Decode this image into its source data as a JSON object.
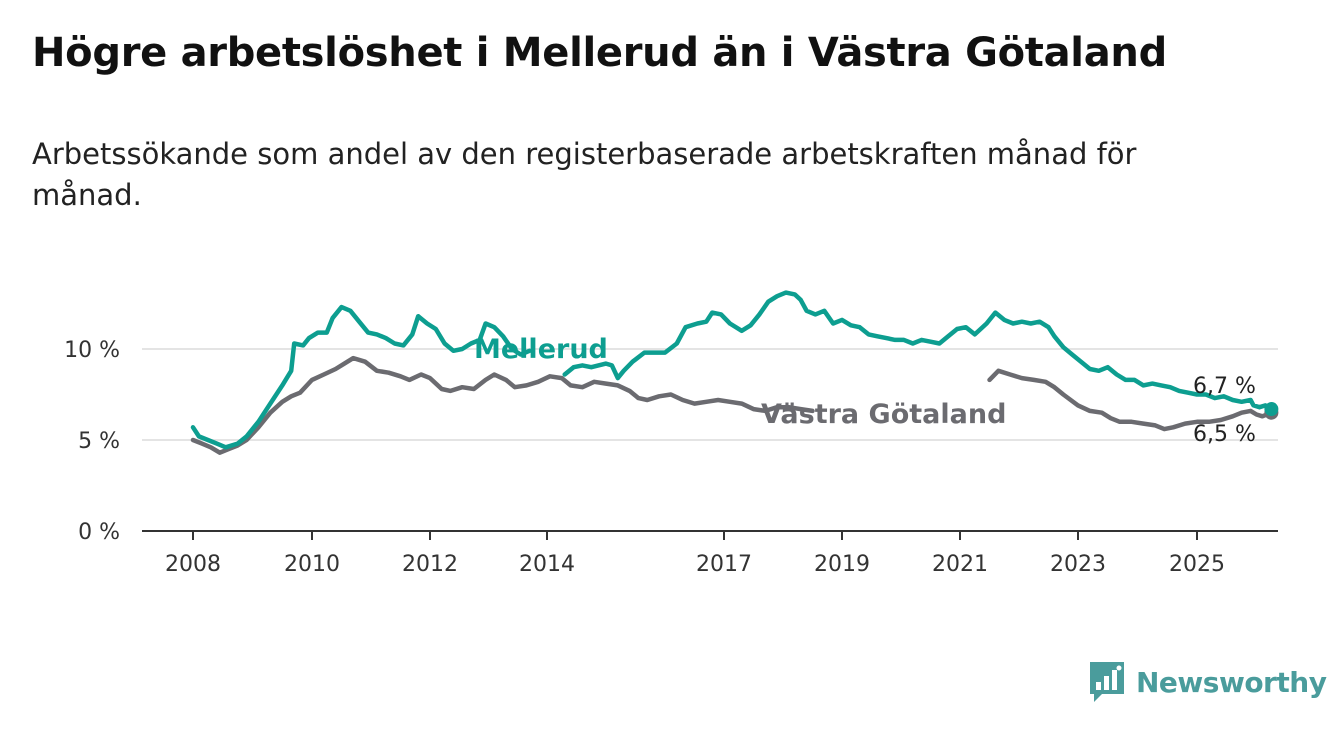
{
  "title": "Högre arbetslöshet i Mellerud än i Västra Götaland",
  "subtitle": "Arbetssökande som andel av den registerbaserade arbetskraften månad för månad.",
  "brand": {
    "name": "Newsworthy",
    "color": "#4a9c9c",
    "icon": "bar-chart-logo-icon"
  },
  "chart_data": {
    "type": "line",
    "y_ticks": [
      0,
      5,
      10
    ],
    "y_tick_format": "{v} %",
    "x_ticks": [
      "2008",
      "2010",
      "2012",
      "2014",
      "2017",
      "2019",
      "2021",
      "2023",
      "2025"
    ],
    "xlim": [
      2008.0,
      2026.3
    ],
    "ylim": [
      0,
      10.5
    ],
    "grid": true,
    "series": [
      {
        "name": "Mellerud",
        "color": "#0d9e90",
        "end_label": "6,7 %",
        "points": [
          [
            2008.0,
            5.7
          ],
          [
            2008.1,
            5.2
          ],
          [
            2008.25,
            5.0
          ],
          [
            2008.4,
            4.8
          ],
          [
            2008.55,
            4.6
          ],
          [
            2008.75,
            4.8
          ],
          [
            2008.9,
            5.2
          ],
          [
            2009.1,
            6.0
          ],
          [
            2009.3,
            7.0
          ],
          [
            2009.5,
            8.0
          ],
          [
            2009.65,
            8.8
          ],
          [
            2009.7,
            10.3
          ],
          [
            2009.85,
            10.2
          ],
          [
            2009.95,
            10.6
          ],
          [
            2010.1,
            10.9
          ],
          [
            2010.25,
            10.9
          ],
          [
            2010.35,
            11.7
          ],
          [
            2010.5,
            12.3
          ],
          [
            2010.65,
            12.1
          ],
          [
            2010.8,
            11.5
          ],
          [
            2010.95,
            10.9
          ],
          [
            2011.1,
            10.8
          ],
          [
            2011.25,
            10.6
          ],
          [
            2011.4,
            10.3
          ],
          [
            2011.55,
            10.2
          ],
          [
            2011.7,
            10.8
          ],
          [
            2011.8,
            11.8
          ],
          [
            2011.95,
            11.4
          ],
          [
            2012.1,
            11.1
          ],
          [
            2012.25,
            10.3
          ],
          [
            2012.4,
            9.9
          ],
          [
            2012.55,
            10.0
          ],
          [
            2012.7,
            10.3
          ],
          [
            2012.85,
            10.5
          ],
          [
            2012.95,
            11.4
          ],
          [
            2013.1,
            11.2
          ],
          [
            2013.25,
            10.7
          ],
          [
            2013.4,
            10.0
          ],
          [
            2013.55,
            9.7
          ],
          [
            2013.7,
            9.9
          ],
          [
            2014.3,
            8.6
          ],
          [
            2014.45,
            9.0
          ],
          [
            2014.6,
            9.1
          ],
          [
            2014.75,
            9.0
          ],
          [
            2015.0,
            9.2
          ],
          [
            2015.1,
            9.1
          ],
          [
            2015.2,
            8.4
          ],
          [
            2015.3,
            8.8
          ],
          [
            2015.45,
            9.3
          ],
          [
            2015.65,
            9.8
          ],
          [
            2015.85,
            9.8
          ],
          [
            2016.0,
            9.8
          ],
          [
            2016.2,
            10.3
          ],
          [
            2016.35,
            11.2
          ],
          [
            2016.55,
            11.4
          ],
          [
            2016.7,
            11.5
          ],
          [
            2016.8,
            12.0
          ],
          [
            2016.95,
            11.9
          ],
          [
            2017.1,
            11.4
          ],
          [
            2017.3,
            11.0
          ],
          [
            2017.45,
            11.3
          ],
          [
            2017.6,
            11.9
          ],
          [
            2017.75,
            12.6
          ],
          [
            2017.9,
            12.9
          ],
          [
            2018.05,
            13.1
          ],
          [
            2018.2,
            13.0
          ],
          [
            2018.3,
            12.7
          ],
          [
            2018.4,
            12.1
          ],
          [
            2018.55,
            11.9
          ],
          [
            2018.7,
            12.1
          ],
          [
            2018.85,
            11.4
          ],
          [
            2019.0,
            11.6
          ],
          [
            2019.15,
            11.3
          ],
          [
            2019.3,
            11.2
          ],
          [
            2019.45,
            10.8
          ],
          [
            2019.6,
            10.7
          ],
          [
            2019.75,
            10.6
          ],
          [
            2019.9,
            10.5
          ],
          [
            2020.05,
            10.5
          ],
          [
            2020.2,
            10.3
          ],
          [
            2020.35,
            10.5
          ],
          [
            2020.5,
            10.4
          ],
          [
            2020.65,
            10.3
          ],
          [
            2020.8,
            10.7
          ],
          [
            2020.95,
            11.1
          ],
          [
            2021.1,
            11.2
          ],
          [
            2021.25,
            10.8
          ],
          [
            2021.45,
            11.4
          ],
          [
            2021.6,
            12.0
          ],
          [
            2021.75,
            11.6
          ],
          [
            2021.9,
            11.4
          ],
          [
            2022.05,
            11.5
          ],
          [
            2022.2,
            11.4
          ],
          [
            2022.35,
            11.5
          ],
          [
            2022.5,
            11.2
          ],
          [
            2022.6,
            10.7
          ],
          [
            2022.75,
            10.1
          ],
          [
            2022.9,
            9.7
          ],
          [
            2023.05,
            9.3
          ],
          [
            2023.2,
            8.9
          ],
          [
            2023.35,
            8.8
          ],
          [
            2023.5,
            9.0
          ],
          [
            2023.65,
            8.6
          ],
          [
            2023.8,
            8.3
          ],
          [
            2023.95,
            8.3
          ],
          [
            2024.1,
            8.0
          ],
          [
            2024.25,
            8.1
          ],
          [
            2024.4,
            8.0
          ],
          [
            2024.55,
            7.9
          ],
          [
            2024.7,
            7.7
          ],
          [
            2024.85,
            7.6
          ],
          [
            2025.0,
            7.5
          ],
          [
            2025.15,
            7.5
          ],
          [
            2025.3,
            7.3
          ],
          [
            2025.45,
            7.4
          ],
          [
            2025.6,
            7.2
          ],
          [
            2025.75,
            7.1
          ],
          [
            2025.9,
            7.2
          ],
          [
            2025.95,
            6.9
          ],
          [
            2026.05,
            6.8
          ],
          [
            2026.15,
            6.9
          ],
          [
            2026.25,
            6.7
          ]
        ]
      },
      {
        "name": "Västra Götaland",
        "color": "#6b6b70",
        "end_label": "6,5 %",
        "points": [
          [
            2008.0,
            5.0
          ],
          [
            2008.15,
            4.8
          ],
          [
            2008.3,
            4.6
          ],
          [
            2008.45,
            4.3
          ],
          [
            2008.6,
            4.5
          ],
          [
            2008.75,
            4.7
          ],
          [
            2008.9,
            5.0
          ],
          [
            2009.1,
            5.7
          ],
          [
            2009.3,
            6.5
          ],
          [
            2009.5,
            7.1
          ],
          [
            2009.65,
            7.4
          ],
          [
            2009.8,
            7.6
          ],
          [
            2010.0,
            8.3
          ],
          [
            2010.2,
            8.6
          ],
          [
            2010.4,
            8.9
          ],
          [
            2010.55,
            9.2
          ],
          [
            2010.7,
            9.5
          ],
          [
            2010.9,
            9.3
          ],
          [
            2011.1,
            8.8
          ],
          [
            2011.3,
            8.7
          ],
          [
            2011.5,
            8.5
          ],
          [
            2011.65,
            8.3
          ],
          [
            2011.85,
            8.6
          ],
          [
            2012.0,
            8.4
          ],
          [
            2012.2,
            7.8
          ],
          [
            2012.35,
            7.7
          ],
          [
            2012.55,
            7.9
          ],
          [
            2012.75,
            7.8
          ],
          [
            2012.95,
            8.3
          ],
          [
            2013.1,
            8.6
          ],
          [
            2013.3,
            8.3
          ],
          [
            2013.45,
            7.9
          ],
          [
            2013.65,
            8.0
          ],
          [
            2013.85,
            8.2
          ],
          [
            2014.05,
            8.5
          ],
          [
            2014.25,
            8.4
          ],
          [
            2014.4,
            8.0
          ],
          [
            2014.6,
            7.9
          ],
          [
            2014.8,
            8.2
          ],
          [
            2015.0,
            8.1
          ],
          [
            2015.2,
            8.0
          ],
          [
            2015.4,
            7.7
          ],
          [
            2015.55,
            7.3
          ],
          [
            2015.7,
            7.2
          ],
          [
            2015.9,
            7.4
          ],
          [
            2016.1,
            7.5
          ],
          [
            2016.3,
            7.2
          ],
          [
            2016.5,
            7.0
          ],
          [
            2016.7,
            7.1
          ],
          [
            2016.9,
            7.2
          ],
          [
            2017.1,
            7.1
          ],
          [
            2017.3,
            7.0
          ],
          [
            2017.5,
            6.7
          ],
          [
            2017.7,
            6.6
          ],
          [
            2017.9,
            6.8
          ],
          [
            2018.1,
            6.8
          ],
          [
            2018.3,
            6.7
          ],
          [
            2018.5,
            6.6
          ],
          [
            2021.5,
            8.3
          ],
          [
            2021.65,
            8.8
          ],
          [
            2021.85,
            8.6
          ],
          [
            2022.05,
            8.4
          ],
          [
            2022.25,
            8.3
          ],
          [
            2022.45,
            8.2
          ],
          [
            2022.6,
            7.9
          ],
          [
            2022.75,
            7.5
          ],
          [
            2023.0,
            6.9
          ],
          [
            2023.2,
            6.6
          ],
          [
            2023.4,
            6.5
          ],
          [
            2023.55,
            6.2
          ],
          [
            2023.7,
            6.0
          ],
          [
            2023.9,
            6.0
          ],
          [
            2024.1,
            5.9
          ],
          [
            2024.3,
            5.8
          ],
          [
            2024.45,
            5.6
          ],
          [
            2024.6,
            5.7
          ],
          [
            2024.8,
            5.9
          ],
          [
            2025.0,
            6.0
          ],
          [
            2025.2,
            6.0
          ],
          [
            2025.4,
            6.1
          ],
          [
            2025.6,
            6.3
          ],
          [
            2025.75,
            6.5
          ],
          [
            2025.9,
            6.6
          ],
          [
            2026.0,
            6.4
          ],
          [
            2026.1,
            6.3
          ],
          [
            2026.25,
            6.5
          ]
        ]
      }
    ]
  }
}
